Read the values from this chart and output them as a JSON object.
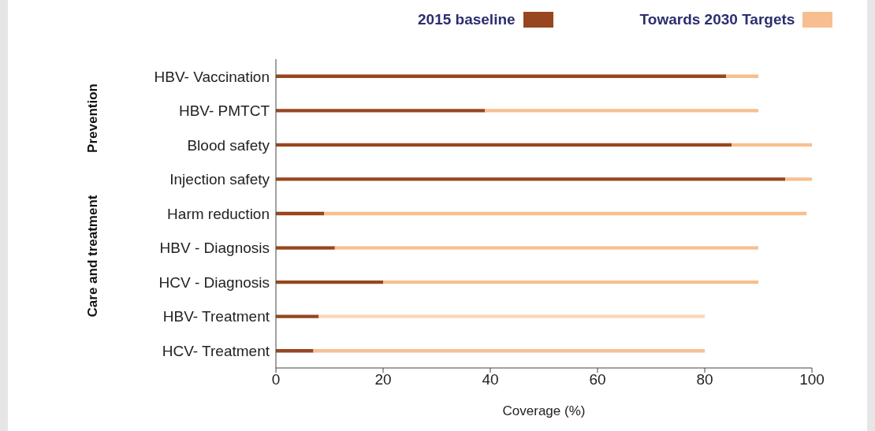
{
  "chart_data": {
    "type": "bar",
    "orientation": "horizontal",
    "stacked": true,
    "categories": [
      "HBV- Vaccination",
      "HBV- PMTCT",
      "Blood safety",
      "Injection safety",
      "Harm reduction",
      "HBV - Diagnosis",
      "HCV - Diagnosis",
      "HBV- Treatment",
      "HCV- Treatment"
    ],
    "series": [
      {
        "name": "2015 baseline",
        "color": "#97461f",
        "values": [
          84,
          39,
          85,
          95,
          9,
          11,
          20,
          8,
          7
        ]
      },
      {
        "name": "Towards 2030 Targets",
        "color": "#f7bf90",
        "colors": [
          "#f7bf90",
          "#f7bf90",
          "#f7bf90",
          "#f7bf90",
          "#f7bf90",
          "#f7bf90",
          "#f7bf90",
          "#fad6b8",
          "#f7bf90"
        ],
        "values": [
          6,
          51,
          15,
          5,
          90,
          79,
          70,
          72,
          73
        ]
      }
    ],
    "xlabel": "Coverage (%)",
    "xlim": [
      0,
      100
    ],
    "xticks": [
      0,
      20,
      40,
      60,
      80,
      100
    ],
    "legend": "top",
    "grid": false,
    "annotations": [
      "Prevention",
      "Care and treatment"
    ]
  }
}
